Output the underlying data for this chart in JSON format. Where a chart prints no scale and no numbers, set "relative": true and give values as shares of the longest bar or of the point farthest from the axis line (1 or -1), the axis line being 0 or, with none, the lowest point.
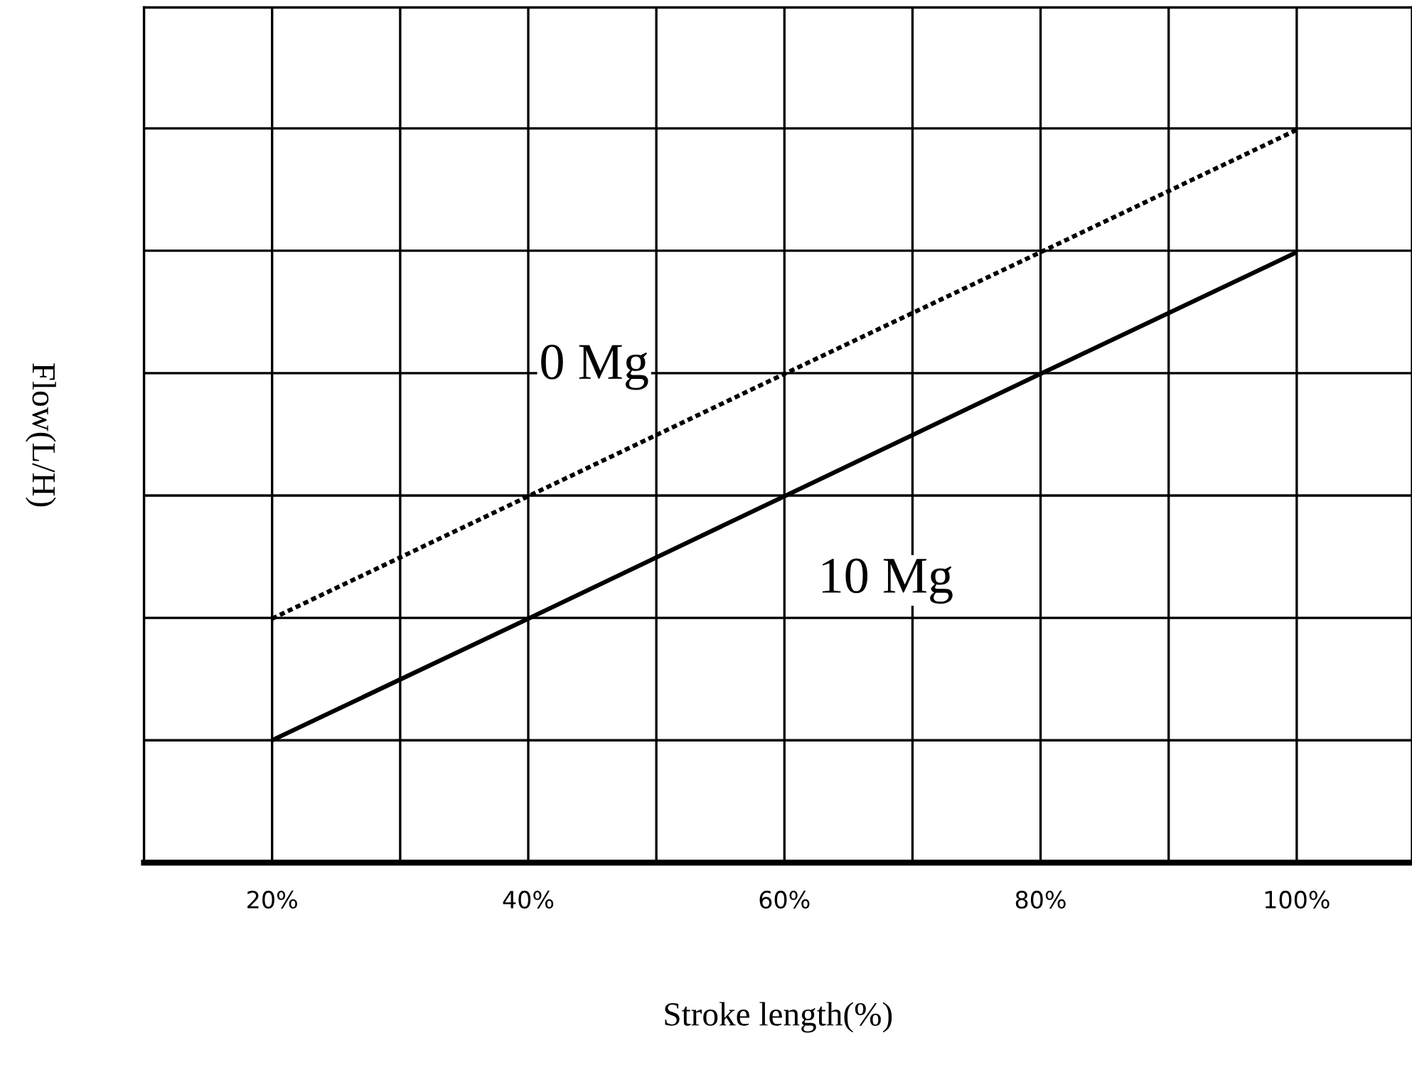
{
  "chart_data": {
    "type": "line",
    "relative": true,
    "xlabel": "Stroke length(%)",
    "ylabel": "Flow(L/H)",
    "x": [
      20,
      40,
      60,
      80,
      100
    ],
    "series": [
      {
        "color": "#000000",
        "line_style": "dotted",
        "values": [
          0.333,
          0.5,
          0.667,
          0.833,
          1
        ]
      },
      {
        "color": "#000000",
        "line_style": "solid",
        "values": [
          0.167,
          0.333,
          0.5,
          0.667,
          0.833
        ]
      }
    ],
    "xlim": [
      10,
      109
    ],
    "xticks": [
      {
        "value": 20,
        "label": "20%"
      },
      {
        "value": 30,
        "label": null
      },
      {
        "value": 40,
        "label": "40%"
      },
      {
        "value": 50,
        "label": null
      },
      {
        "value": 60,
        "label": "60%"
      },
      {
        "value": 70,
        "label": null
      },
      {
        "value": 80,
        "label": "80%"
      },
      {
        "value": 90,
        "label": null
      },
      {
        "value": 100,
        "label": "100%"
      }
    ],
    "annotations": [
      "0 Mg",
      "10 Mg"
    ],
    "grid": true,
    "marker": "none",
    "legend": false
  }
}
